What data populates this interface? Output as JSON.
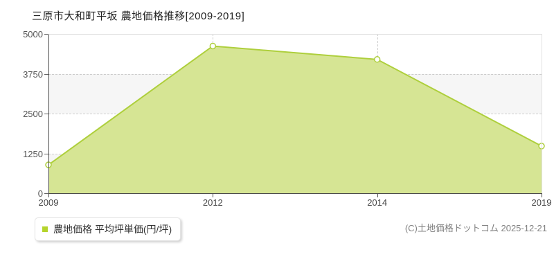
{
  "title": "三原市大和町平坂 農地価格推移[2009-2019]",
  "legend": {
    "label": "農地価格 平均坪単価(円/坪)",
    "swatch_color": "#b5d42c"
  },
  "footer": {
    "copyright": "(C)土地価格ドットコム 2025-12-21"
  },
  "chart_data": {
    "type": "area",
    "title": "三原市大和町平坂 農地価格推移[2009-2019]",
    "categories": [
      "2009",
      "2012",
      "2014",
      "2019"
    ],
    "series": [
      {
        "name": "農地価格 平均坪単価(円/坪)",
        "values": [
          890,
          4620,
          4200,
          1480
        ]
      }
    ],
    "xlabel": "",
    "ylabel": "",
    "unit": "円/坪",
    "ylim": [
      0,
      5000
    ],
    "y_ticks": [
      0,
      1250,
      2500,
      3750,
      5000
    ],
    "x_spacing": "equal-interval (years not to scale)",
    "grid": "horizontal dashed at y ticks, vertical dashed at interior categories, alternating horizontal bands",
    "legend_position": "bottom-left",
    "colors": {
      "area_fill": "#d6e594",
      "line_stroke": "#aecf3c",
      "marker_fill": "#ffffff",
      "band_shade": "#f6f6f6",
      "gridline": "#cccccc",
      "axis": "#4a4a4a"
    }
  }
}
